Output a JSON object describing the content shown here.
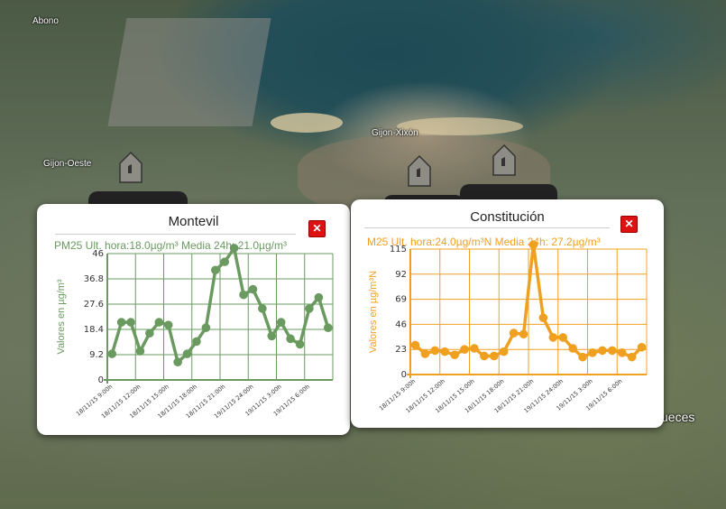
{
  "map": {
    "labels": [
      "Abono",
      "Gijon-Oeste",
      "Gijon-Xixón",
      "ueces"
    ]
  },
  "popups": [
    {
      "title": "Montevil",
      "subtitle": "PM25 Ult. hora:18.0µg/m³ Media 24h: 21.0µg/m³",
      "color": "#6a9a60",
      "chart_data": {
        "type": "line",
        "ylabel": "Valores en µg/m³",
        "yticks": [
          "0",
          "9.2",
          "18.4",
          "27.6",
          "36.8",
          "46"
        ],
        "ylim": [
          0,
          46
        ],
        "xticks": [
          "18/11/15 9:00h",
          "18/11/15 12:00h",
          "18/11/15 15:00h",
          "18/11/15 18:00h",
          "18/11/15 21:00h",
          "19/11/15 24:00h",
          "19/11/15 3:00h",
          "19/11/15 6:00h"
        ],
        "values": [
          9.5,
          21,
          21,
          10.5,
          17,
          21,
          20,
          6.5,
          9.5,
          14,
          19,
          40,
          43,
          48,
          31,
          33,
          26,
          16,
          21,
          15,
          13,
          26,
          30,
          19
        ]
      }
    },
    {
      "title": "Constitución",
      "subtitle": "M25 Ult. hora:24.0µg/m³N Media 24h: 27.2µg/m³",
      "color": "#f0a020",
      "chart_data": {
        "type": "line",
        "ylabel": "Valores en µg/m³N",
        "yticks": [
          "0",
          "23",
          "46",
          "69",
          "92",
          "115"
        ],
        "ylim": [
          0,
          115
        ],
        "xticks": [
          "18/11/15 9:00h",
          "18/11/15 12:00h",
          "18/11/15 15:00h",
          "18/11/15 18:00h",
          "18/11/15 21:00h",
          "19/11/15 24:00h",
          "19/11/15 3:00h",
          "19/11/15 6:00h"
        ],
        "values": [
          27,
          19,
          22,
          21,
          18,
          23,
          24,
          17,
          17,
          21,
          38,
          37,
          120,
          52,
          34,
          34,
          24,
          16,
          20,
          22,
          22,
          20,
          16,
          25
        ]
      }
    }
  ]
}
